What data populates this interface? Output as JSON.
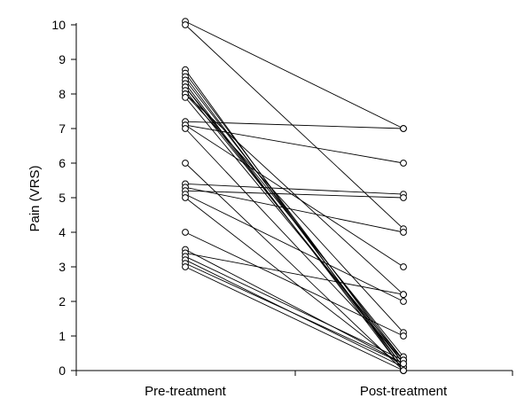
{
  "chart_data": {
    "type": "line",
    "title": "",
    "xlabel": "",
    "ylabel": "Pain (VRS)",
    "categories": [
      "Pre-treatment",
      "Post-treatment"
    ],
    "ylim": [
      0,
      10
    ],
    "yticks": [
      0,
      1,
      2,
      3,
      4,
      5,
      6,
      7,
      8,
      9,
      10
    ],
    "grid": false,
    "legend": "none",
    "marker": "open-circle",
    "line_color": "#000000",
    "marker_fill": "#ffffff",
    "series": [
      {
        "values": [
          10.1,
          7.0
        ]
      },
      {
        "values": [
          10.0,
          4.1
        ]
      },
      {
        "values": [
          8.7,
          0.0
        ]
      },
      {
        "values": [
          8.6,
          0.2
        ]
      },
      {
        "values": [
          8.5,
          0.1
        ]
      },
      {
        "values": [
          8.4,
          0.3
        ]
      },
      {
        "values": [
          8.3,
          0.0
        ]
      },
      {
        "values": [
          8.2,
          0.4
        ]
      },
      {
        "values": [
          8.2,
          0.1
        ]
      },
      {
        "values": [
          8.1,
          0.2
        ]
      },
      {
        "values": [
          8.0,
          1.1
        ]
      },
      {
        "values": [
          8.0,
          2.2
        ]
      },
      {
        "values": [
          7.9,
          0.3
        ]
      },
      {
        "values": [
          7.2,
          7.0
        ]
      },
      {
        "values": [
          7.1,
          6.0
        ]
      },
      {
        "values": [
          7.1,
          3.0
        ]
      },
      {
        "values": [
          7.0,
          0.3
        ]
      },
      {
        "values": [
          6.0,
          0.0
        ]
      },
      {
        "values": [
          5.4,
          5.1
        ]
      },
      {
        "values": [
          5.3,
          4.0
        ]
      },
      {
        "values": [
          5.2,
          5.0
        ]
      },
      {
        "values": [
          5.1,
          2.0
        ]
      },
      {
        "values": [
          5.0,
          0.1
        ]
      },
      {
        "values": [
          4.0,
          1.0
        ]
      },
      {
        "values": [
          3.5,
          0.2
        ]
      },
      {
        "values": [
          3.4,
          2.2
        ]
      },
      {
        "values": [
          3.3,
          0.3
        ]
      },
      {
        "values": [
          3.2,
          0.1
        ]
      },
      {
        "values": [
          3.1,
          0.2
        ]
      },
      {
        "values": [
          3.0,
          0.0
        ]
      }
    ]
  }
}
